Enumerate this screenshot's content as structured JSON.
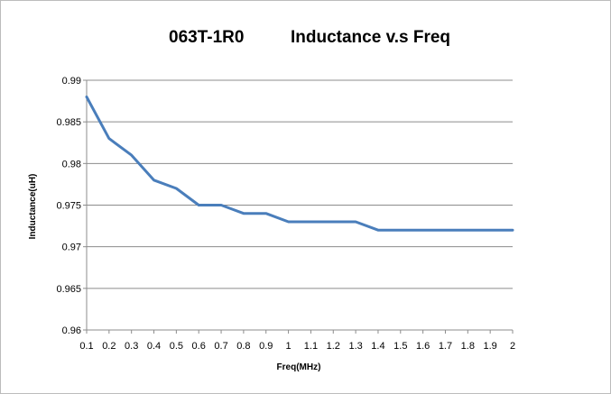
{
  "chart_data": {
    "type": "line",
    "title_part_number": "063T-1R0",
    "title_text": "Inductance v.s Freq",
    "xlabel": "Freq(MHz)",
    "ylabel": "Inductance(uH)",
    "x_tick_labels": [
      "0.1",
      "0.2",
      "0.3",
      "0.4",
      "0.5",
      "0.6",
      "0.7",
      "0.8",
      "0.9",
      "1",
      "1.1",
      "1.2",
      "1.3",
      "1.4",
      "1.5",
      "1.6",
      "1.7",
      "1.8",
      "1.9",
      "2"
    ],
    "y_tick_labels": [
      "0.96",
      "0.965",
      "0.97",
      "0.975",
      "0.98",
      "0.985",
      "0.99"
    ],
    "ylim": [
      0.96,
      0.99
    ],
    "y_tick_step": 0.005,
    "grid": true,
    "legend": "none",
    "line_color": "#4a7ebb",
    "series": [
      {
        "x": [
          0.1,
          0.2,
          0.3,
          0.4,
          0.5,
          0.6,
          0.7,
          0.8,
          0.9,
          1.0,
          1.1,
          1.2,
          1.3,
          1.4,
          1.5,
          1.6,
          1.7,
          1.8,
          1.9,
          2.0
        ],
        "values": [
          0.988,
          0.983,
          0.981,
          0.978,
          0.977,
          0.975,
          0.975,
          0.974,
          0.974,
          0.973,
          0.973,
          0.973,
          0.973,
          0.972,
          0.972,
          0.972,
          0.972,
          0.972,
          0.972,
          0.972
        ]
      }
    ]
  }
}
